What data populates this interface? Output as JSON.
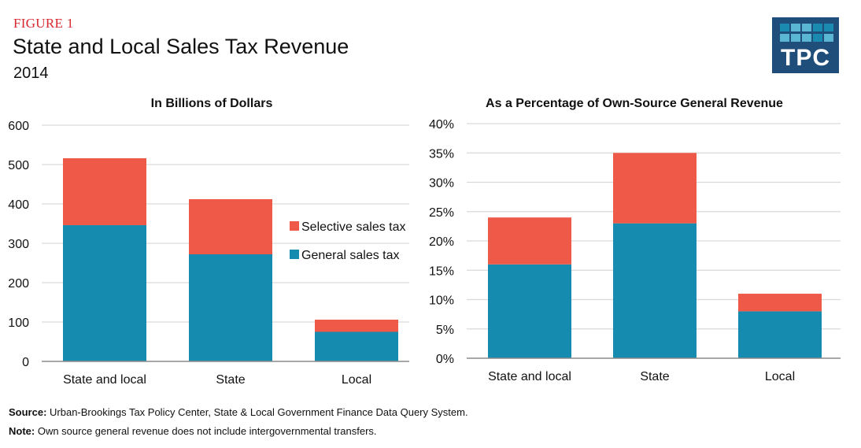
{
  "header": {
    "figure_label": "FIGURE 1",
    "title": "State and Local Sales Tax Revenue",
    "subtitle": "2014"
  },
  "logo": {
    "text": "TPC",
    "background": "#1f4e7a",
    "square_colors": [
      "#1a8ab0",
      "#5bb6d3",
      "#5bb6d3",
      "#1a8ab0",
      "#1a8ab0",
      "#5bb6d3",
      "#5bb6d3",
      "#5bb6d3",
      "#1a8ab0",
      "#5bb6d3"
    ]
  },
  "colors": {
    "general": "#168bb0",
    "selective": "#ef5a48",
    "grid": "#d9d9d9",
    "axis": "#8c8c8c"
  },
  "chart_data": [
    {
      "type": "bar",
      "stacked": true,
      "title": "In Billions of Dollars",
      "xlabel": "",
      "ylabel": "",
      "categories": [
        "State and local",
        "State",
        "Local"
      ],
      "series": [
        {
          "name": "General sales tax",
          "values": [
            346,
            272,
            75
          ]
        },
        {
          "name": "Selective sales tax",
          "values": [
            170,
            140,
            31
          ]
        }
      ],
      "ylim": [
        0,
        600
      ],
      "yticks": [
        0,
        100,
        200,
        300,
        400,
        500,
        600
      ],
      "ytick_labels": [
        "0",
        "100",
        "200",
        "300",
        "400",
        "500",
        "600"
      ],
      "grid": true,
      "legend": {
        "placement": "right",
        "entries": [
          "Selective sales tax",
          "General sales tax"
        ]
      }
    },
    {
      "type": "bar",
      "stacked": true,
      "title": "As a Percentage of Own-Source General Revenue",
      "xlabel": "",
      "ylabel": "",
      "categories": [
        "State and local",
        "State",
        "Local"
      ],
      "series": [
        {
          "name": "General sales tax",
          "values": [
            16,
            23,
            8
          ]
        },
        {
          "name": "Selective sales tax",
          "values": [
            8,
            12,
            3
          ]
        }
      ],
      "ylim": [
        0,
        40
      ],
      "yticks": [
        0,
        5,
        10,
        15,
        20,
        25,
        30,
        35,
        40
      ],
      "ytick_labels": [
        "0%",
        "5%",
        "10%",
        "15%",
        "20%",
        "25%",
        "30%",
        "35%",
        "40%"
      ],
      "grid": true,
      "legend": null
    }
  ],
  "footer": {
    "source_label": "Source:",
    "source_text": " Urban-Brookings Tax Policy Center, State & Local Government Finance Data Query System.",
    "note_label": "Note:",
    "note_text": " Own source general revenue does not include intergovernmental transfers."
  }
}
